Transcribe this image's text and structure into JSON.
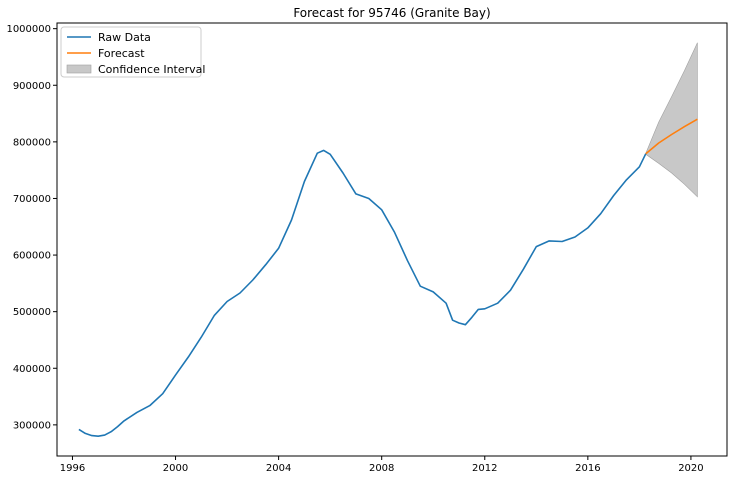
{
  "chart_data": {
    "type": "line",
    "title": "Forecast for 95746 (Granite Bay)",
    "xlabel": "",
    "ylabel": "",
    "xlim": [
      1995.4,
      2021.4
    ],
    "ylim": [
      245000,
      1010000
    ],
    "x_ticks": [
      1996,
      2000,
      2004,
      2008,
      2012,
      2016,
      2020
    ],
    "y_ticks": [
      300000,
      400000,
      500000,
      600000,
      700000,
      800000,
      900000,
      1000000
    ],
    "x_tick_labels": [
      "1996",
      "2000",
      "2004",
      "2008",
      "2012",
      "2016",
      "2020"
    ],
    "y_tick_labels": [
      "300000",
      "400000",
      "500000",
      "600000",
      "700000",
      "800000",
      "900000",
      "1000000"
    ],
    "grid": false,
    "legend_position": "top-left",
    "series": [
      {
        "name": "Raw Data",
        "color": "#1f77b4",
        "x": [
          1996.25,
          1996.5,
          1996.75,
          1997.0,
          1997.25,
          1997.5,
          1997.75,
          1998.0,
          1998.5,
          1999.0,
          1999.5,
          2000.0,
          2000.5,
          2001.0,
          2001.5,
          2002.0,
          2002.5,
          2003.0,
          2003.5,
          2004.0,
          2004.5,
          2005.0,
          2005.5,
          2005.75,
          2006.0,
          2006.5,
          2007.0,
          2007.5,
          2008.0,
          2008.5,
          2009.0,
          2009.5,
          2010.0,
          2010.5,
          2010.75,
          2011.0,
          2011.25,
          2011.5,
          2011.75,
          2012.0,
          2012.5,
          2013.0,
          2013.5,
          2014.0,
          2014.5,
          2015.0,
          2015.5,
          2016.0,
          2016.5,
          2017.0,
          2017.5,
          2018.0,
          2018.25
        ],
        "y": [
          292000,
          285000,
          281000,
          280000,
          282000,
          288000,
          297000,
          307000,
          322000,
          334000,
          355000,
          388000,
          420000,
          455000,
          493000,
          518000,
          533000,
          556000,
          583000,
          612000,
          662000,
          730000,
          780000,
          785000,
          778000,
          745000,
          708000,
          700000,
          680000,
          640000,
          590000,
          545000,
          535000,
          515000,
          485000,
          480000,
          477000,
          490000,
          504000,
          505000,
          515000,
          538000,
          575000,
          615000,
          625000,
          624000,
          632000,
          648000,
          673000,
          705000,
          733000,
          756000,
          779000
        ]
      },
      {
        "name": "Forecast",
        "color": "#ff7f0e",
        "x": [
          2018.25,
          2018.75,
          2019.25,
          2019.75,
          2020.25
        ],
        "y": [
          779000,
          798000,
          813000,
          827000,
          840000
        ]
      }
    ],
    "confidence_interval": {
      "name": "Confidence Interval",
      "color": "#c8c8c8",
      "x": [
        2018.25,
        2018.75,
        2019.25,
        2019.75,
        2020.25
      ],
      "lower": [
        778000,
        762000,
        745000,
        725000,
        703000
      ],
      "upper": [
        780000,
        835000,
        880000,
        926000,
        975000
      ]
    }
  }
}
